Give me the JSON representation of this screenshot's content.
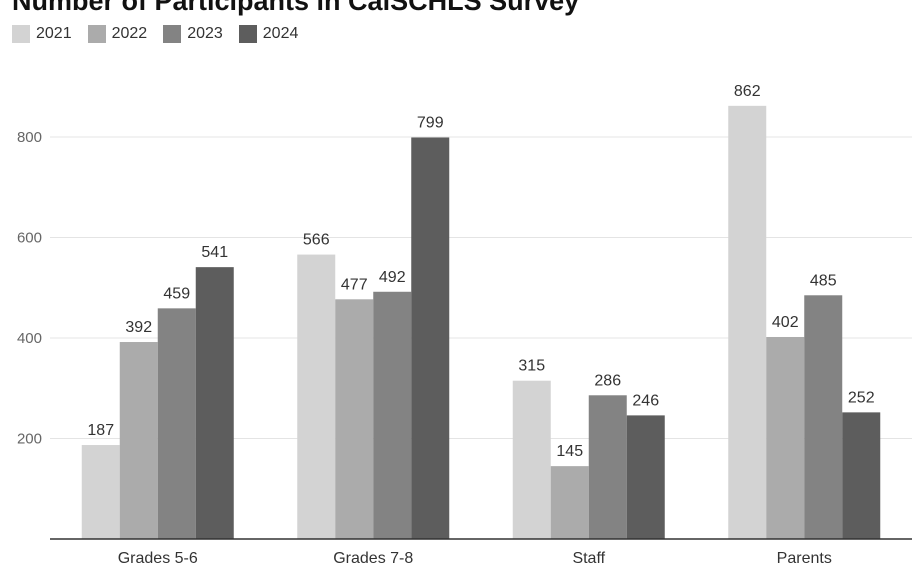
{
  "chart_data": {
    "type": "bar",
    "title": "Number of Participants in CalSCHLS Survey",
    "xlabel": "",
    "ylabel": "",
    "categories": [
      "Grades 5-6",
      "Grades 7-8",
      "Staff",
      "Parents"
    ],
    "series": [
      {
        "name": "2021",
        "values": [
          187,
          566,
          315,
          862
        ],
        "color": "#d3d3d3"
      },
      {
        "name": "2022",
        "values": [
          392,
          477,
          145,
          402
        ],
        "color": "#ababab"
      },
      {
        "name": "2023",
        "values": [
          459,
          492,
          286,
          485
        ],
        "color": "#838383"
      },
      {
        "name": "2024",
        "values": [
          541,
          799,
          246,
          252
        ],
        "color": "#5d5d5d"
      }
    ],
    "ylim": [
      0,
      900
    ],
    "yticks": [
      200,
      400,
      600,
      800
    ],
    "grid": true,
    "legend_position": "top-left"
  }
}
